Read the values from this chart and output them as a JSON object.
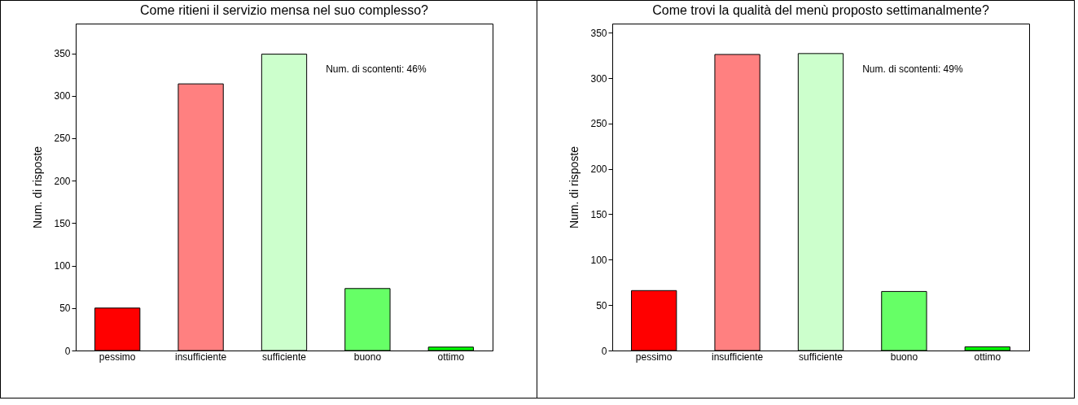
{
  "chart_data": [
    {
      "type": "bar",
      "title": "Come ritieni il servizio mensa nel suo complesso?",
      "ylabel": "Num. di risposte",
      "categories": [
        "pessimo",
        "insufficiente",
        "sufficiente",
        "buono",
        "ottimo"
      ],
      "values": [
        50,
        314,
        349,
        73,
        4
      ],
      "colors": [
        "#ff0000",
        "#ff8080",
        "#ccffcc",
        "#66ff66",
        "#00ff00"
      ],
      "ylim": [
        0,
        385
      ],
      "yticks": [
        0,
        50,
        100,
        150,
        200,
        250,
        300,
        350
      ],
      "annotations": [
        "Num. di scontenti: 46%"
      ]
    },
    {
      "type": "bar",
      "title": "Come trovi la qualità del menù proposto settimanalmente?",
      "ylabel": "Num. di risposte",
      "categories": [
        "pessimo",
        "insufficiente",
        "sufficiente",
        "buono",
        "ottimo"
      ],
      "values": [
        66,
        326,
        327,
        65,
        4
      ],
      "colors": [
        "#ff0000",
        "#ff8080",
        "#ccffcc",
        "#66ff66",
        "#00ff00"
      ],
      "ylim": [
        0,
        360
      ],
      "yticks": [
        0,
        50,
        100,
        150,
        200,
        250,
        300,
        350
      ],
      "annotations": [
        "Num. di scontenti: 49%"
      ]
    }
  ]
}
